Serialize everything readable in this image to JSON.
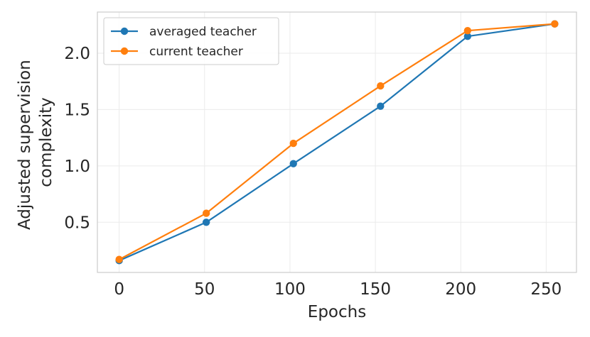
{
  "chart_data": {
    "type": "line",
    "x": [
      0,
      51,
      102,
      153,
      204,
      255
    ],
    "series": [
      {
        "name": "averaged teacher",
        "color": "#1f77b4",
        "values": [
          0.16,
          0.5,
          1.02,
          1.53,
          2.15,
          2.26
        ]
      },
      {
        "name": "current teacher",
        "color": "#ff7f0e",
        "values": [
          0.17,
          0.58,
          1.2,
          1.71,
          2.2,
          2.26
        ]
      }
    ],
    "xlabel": "Epochs",
    "ylabel": [
      "Adjusted supervision",
      "complexity"
    ],
    "xticks": [
      0,
      50,
      100,
      150,
      200,
      250
    ],
    "yticks": [
      0.5,
      1.0,
      1.5,
      2.0
    ],
    "xtick_labels": [
      "0",
      "50",
      "100",
      "150",
      "200",
      "250"
    ],
    "ytick_labels": [
      "0.5",
      "1.0",
      "1.5",
      "2.0"
    ],
    "xlim": [
      -12.75,
      267.75
    ],
    "ylim": [
      0.055,
      2.365
    ],
    "grid": true,
    "legend_position": "top-left"
  }
}
